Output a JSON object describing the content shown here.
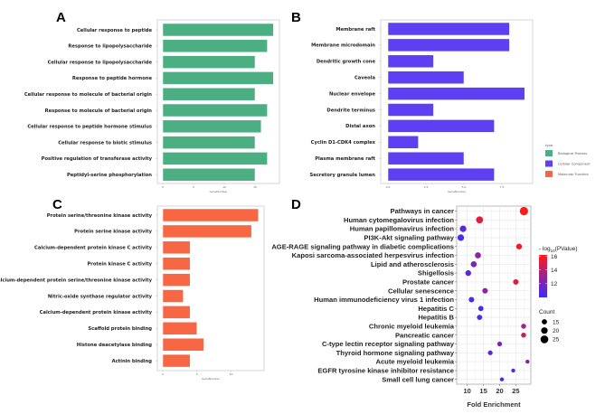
{
  "chart_data": [
    {
      "panel": "A",
      "type": "bar",
      "orientation": "horizontal",
      "categories": [
        "Cellular response to peptide",
        "Response to lipopolysaccharide",
        "Cellular response to lipopolysaccharide",
        "Response to peptide hormone",
        "Cellular response to molecule of bacterial origin",
        "Response to molecule of bacterial origin",
        "Cellular response to peptide hormone stimulus",
        "Cellular response to biotic stimulus",
        "Positive regulation of transferase activity",
        "Peptidyl-serine phosphorylation"
      ],
      "values": [
        18,
        17,
        15,
        18,
        15,
        17,
        16,
        15,
        17,
        15
      ],
      "xlabel": "GeneNumber",
      "xticks": [
        "0",
        "5",
        "10",
        "15"
      ],
      "xlim": [
        0,
        19
      ],
      "color": "#4caf84",
      "type_group": "Biological Process"
    },
    {
      "panel": "B",
      "type": "bar",
      "orientation": "horizontal",
      "categories": [
        "Membrane raft",
        "Membrane microdomain",
        "Dendritic growth cone",
        "Caveola",
        "Nuclear envelope",
        "Dendrite terminus",
        "Distal axon",
        "Cyclin D1-CDK4 complex",
        "Plasma membrane raft",
        "Secretory granule lumen"
      ],
      "values": [
        8,
        8,
        3,
        5,
        9,
        3,
        7,
        2,
        5,
        7
      ],
      "xlabel": "GeneNumber",
      "xticks": [
        "0.0",
        "2.5",
        "5.0",
        "7.5"
      ],
      "xlim": [
        0,
        9.5
      ],
      "color": "#5f3ff2",
      "type_group": "Cellular Component"
    },
    {
      "panel": "C",
      "type": "bar",
      "orientation": "horizontal",
      "categories": [
        "Protein serine/threonine kinase activity",
        "Protein serine kinase activity",
        "Calcium-dependent protein  kinase C  activity",
        "Protein  kinase C  activity",
        "Calcium-dependent protein serine/threonine kinase activity",
        "Nitric-oxide synthase regulator activity",
        "Calcium-dependent protein  kinase  activity",
        "Scaffold protein binding",
        "Histone deacetylase binding",
        "Actinin binding"
      ],
      "values": [
        14,
        13,
        4,
        4,
        4,
        3,
        4,
        5,
        6,
        4
      ],
      "xlabel": "GeneNumber",
      "xticks": [
        "0",
        "5",
        "10"
      ],
      "xlim": [
        0,
        15
      ],
      "color": "#f86744",
      "type_group": "Molecular Function"
    },
    {
      "panel": "D",
      "type": "scatter",
      "categories": [
        "Pathways in cancer",
        "Human cytomegalovirus infection",
        "Human papillomavirus infection",
        "PI3K-Akt signaling pathway",
        "AGE-RAGE signaling pathway in diabetic complications",
        "Kaposi sarcoma-associated herpesvirus infection",
        "Lipid and atherosclerosis",
        "Shigellosis",
        "Prostate cancer",
        "Cellular senescence",
        "Human immunodeficiency virus 1 infection",
        "Hepatitis C",
        "Hepatitis B",
        "Chronic myeloid leukemia",
        "Pancreatic cancer",
        "C-type lectin receptor signaling pathway",
        "Thyroid hormone signaling pathway",
        "Acute myeloid leukemia",
        "EGFR tyrosine kinase inhibitor resistance",
        "Small cell lung cancer"
      ],
      "fold_enrichment": [
        27.5,
        13.8,
        8.7,
        8.0,
        26.0,
        13.3,
        12.0,
        10.3,
        25.0,
        15.5,
        11.3,
        14.2,
        13.8,
        27.4,
        27.4,
        20.0,
        17.1,
        28.6,
        24.2,
        20.7
      ],
      "count": [
        27,
        22,
        20,
        20,
        17,
        18,
        18,
        17,
        16,
        16,
        16,
        15,
        15,
        14,
        14,
        13,
        13,
        10,
        10,
        10
      ],
      "neg_log10_pvalue": [
        16,
        15,
        11,
        10.5,
        15.5,
        12.5,
        12,
        11,
        15,
        12.5,
        10.5,
        10.5,
        10.5,
        13,
        14,
        12,
        11,
        12,
        11,
        10.5
      ],
      "xlabel": "Fold Enrichment",
      "xticks": [
        "10",
        "15",
        "20",
        "25"
      ],
      "xlim": [
        6.7,
        29.6
      ],
      "grid": true,
      "color_legend": {
        "title_prefix": "- log",
        "title_sub": "10",
        "title_suffix": "(PValue)",
        "ticks": [
          "16",
          "14",
          "12"
        ],
        "range": [
          10,
          16
        ],
        "low_color": "#3a2bff",
        "high_color": "#ff1a1a"
      },
      "size_legend": {
        "title": "Count",
        "values": [
          "15",
          "20",
          "25"
        ]
      }
    }
  ],
  "panel_labels": [
    "A",
    "B",
    "C",
    "D"
  ],
  "type_legend": {
    "title": "type",
    "items": [
      {
        "label": "Biological Process",
        "color": "#4caf84"
      },
      {
        "label": "Cellular Component",
        "color": "#5f3ff2"
      },
      {
        "label": "Molecular Function",
        "color": "#f86744"
      }
    ]
  }
}
